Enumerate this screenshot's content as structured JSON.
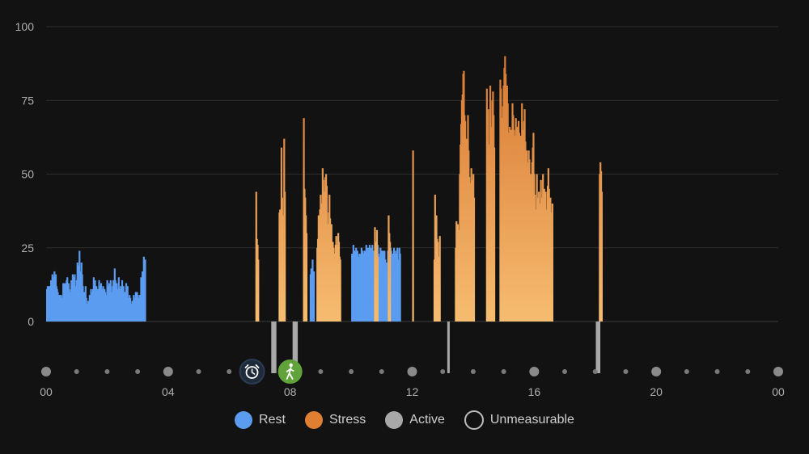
{
  "chart_data": {
    "type": "bar",
    "title": "",
    "xlabel": "",
    "ylabel": "",
    "ylim": [
      0,
      100
    ],
    "xlim_hours": [
      0,
      24
    ],
    "y_ticks": [
      "100",
      "75",
      "50",
      "25",
      "0"
    ],
    "y_tick_values": [
      100,
      75,
      50,
      25,
      0
    ],
    "x_ticks": [
      "00",
      "04",
      "08",
      "12",
      "16",
      "20",
      "00"
    ],
    "x_tick_hours": [
      0,
      4,
      8,
      12,
      16,
      20,
      24
    ],
    "grid": true,
    "legend_placement": "bottom-center",
    "colors": {
      "rest": "#5b9cf0",
      "stress_top": "#e07e32",
      "stress_bottom": "#f4b46a",
      "active": "#a8a8a8",
      "grid": "#2e2e2e",
      "axis_text": "#b0b0b0"
    },
    "series": [
      {
        "name": "Rest",
        "color": "#5b9cf0",
        "segments": [
          {
            "start_hour": 0.0,
            "values": [
              11,
              12,
              10,
              12,
              9,
              12,
              14,
              11,
              16,
              13,
              15,
              17,
              14,
              16,
              12,
              11,
              10,
              8,
              9,
              9,
              8,
              9,
              8,
              6,
              13,
              13,
              11,
              13,
              13,
              14,
              15,
              10,
              13,
              11,
              10,
              9,
              14,
              11,
              16,
              13,
              15,
              16,
              11,
              12,
              14,
              20,
              12,
              19,
              24,
              17,
              15,
              20,
              16,
              12,
              9,
              10,
              9,
              12,
              8,
              6,
              5,
              7,
              5,
              9,
              8,
              11,
              4,
              10,
              11,
              15,
              9,
              14,
              10,
              12,
              9,
              11,
              10,
              14,
              12,
              9,
              13,
              11,
              9,
              12,
              9,
              11,
              10,
              9,
              8,
              14,
              12,
              9,
              13,
              11,
              14,
              9,
              10,
              12,
              14,
              13,
              18,
              14,
              10,
              13,
              11,
              8,
              15,
              9,
              11,
              12,
              10,
              14,
              10,
              12,
              9,
              10,
              8,
              13,
              9,
              12,
              8,
              7,
              9,
              8,
              6,
              6,
              7,
              7,
              9,
              7,
              8,
              10,
              7,
              10,
              9,
              8,
              7,
              9,
              9,
              15,
              14,
              17,
              16,
              22,
              18,
              21
            ]
          },
          {
            "start_hour": 8.64,
            "values": [
              16,
              18,
              14,
              21,
              15,
              17
            ]
          },
          {
            "start_hour": 10.0,
            "values": [
              23,
              22,
              26,
              24,
              24,
              22,
              25,
              23,
              24,
              22,
              20,
              23,
              23,
              21,
              25,
              22,
              24,
              23,
              22,
              24,
              21,
              26,
              24,
              25,
              25,
              24,
              26,
              24,
              25,
              24,
              26,
              24,
              24,
              23,
              25,
              23,
              22,
              24,
              26,
              23,
              22,
              21,
              25,
              23,
              24,
              21,
              24,
              20,
              24,
              21,
              20,
              15,
              20,
              24,
              20,
              21,
              22,
              25,
              24,
              22,
              23,
              22,
              25,
              24,
              23,
              22,
              24,
              25,
              21,
              20,
              25,
              23
            ]
          }
        ]
      },
      {
        "name": "Stress",
        "color": "#e07e32",
        "segments": [
          {
            "start_hour": 6.86,
            "values": [
              44,
              28,
              26,
              21
            ]
          },
          {
            "start_hour": 7.62,
            "values": [
              37,
              38,
              34,
              59,
              42,
              36,
              32,
              62,
              44
            ]
          },
          {
            "start_hour": 8.42,
            "values": [
              69,
              45,
              42,
              36,
              30
            ]
          },
          {
            "start_hour": 8.86,
            "values": [
              25,
              28,
              36,
              31,
              38,
              43,
              40,
              36,
              52,
              48,
              44,
              30,
              49,
              50,
              46,
              30,
              33,
              37,
              43,
              35,
              29,
              33,
              24,
              27,
              25,
              22,
              23,
              26,
              29,
              21,
              26,
              30,
              27,
              22,
              21
            ]
          },
          {
            "start_hour": 10.75,
            "values": [
              32,
              27,
              25,
              31,
              22
            ]
          },
          {
            "start_hour": 11.2,
            "values": [
              36,
              30,
              27
            ]
          },
          {
            "start_hour": 12.0,
            "values": [
              58
            ]
          },
          {
            "start_hour": 12.7,
            "values": [
              21,
              43,
              34,
              36,
              28,
              27,
              22,
              21,
              29
            ]
          },
          {
            "start_hour": 13.4,
            "values": [
              25,
              34,
              33,
              33,
              31,
              31,
              50,
              60,
              67,
              75,
              77,
              84,
              85,
              70,
              68,
              60,
              62,
              53,
              70,
              58,
              49,
              47,
              44,
              52,
              48,
              46,
              50,
              42
            ]
          },
          {
            "start_hour": 14.42,
            "values": [
              79,
              67,
              72,
              55,
              60,
              80,
              64,
              66,
              75,
              78,
              70,
              59
            ]
          },
          {
            "start_hour": 14.86,
            "values": [
              82,
              79,
              62,
              69,
              73,
              80,
              86,
              90,
              84,
              78,
              80,
              74,
              64,
              62,
              66,
              56,
              65,
              61,
              74,
              70,
              65,
              63,
              60,
              69,
              58,
              66,
              57,
              68,
              64,
              60,
              63,
              57,
              74,
              65,
              62,
              68,
              72,
              61,
              56,
              58,
              54,
              52,
              58,
              55,
              47,
              50,
              48,
              54,
              59,
              64,
              50,
              43,
              38,
              35,
              50,
              42,
              37,
              44,
              36,
              40,
              48,
              42,
              38,
              50,
              37,
              45,
              39,
              44,
              35,
              38,
              46,
              52,
              45,
              38,
              42,
              37,
              36,
              40
            ]
          },
          {
            "start_hour": 18.12,
            "values": [
              50,
              54,
              51,
              44
            ]
          }
        ]
      },
      {
        "name": "Active",
        "color": "#a8a8a8",
        "segments": [
          {
            "start_hour": 7.38,
            "values": [
              -7,
              -7,
              -7,
              -7,
              -7,
              -7
            ]
          },
          {
            "start_hour": 8.08,
            "values": [
              -7,
              -7,
              -7,
              -7,
              -7,
              -7
            ]
          },
          {
            "start_hour": 13.15,
            "values": [
              -7,
              -7
            ]
          },
          {
            "start_hour": 18.02,
            "values": [
              -7,
              -7,
              -7,
              -7,
              -7
            ]
          }
        ]
      }
    ],
    "timeline_markers": [
      {
        "name": "Alarm",
        "hour": 6.75,
        "icon": "alarm-clock-icon",
        "color": "#1f2a3a"
      },
      {
        "name": "Walk",
        "hour": 8.0,
        "icon": "walking-person-icon",
        "color": "#5fa33a"
      }
    ]
  },
  "legend": {
    "items": [
      {
        "label": "Rest",
        "color": "#5b9cf0",
        "style": "filled"
      },
      {
        "label": "Stress",
        "color": "#e07e32",
        "style": "filled"
      },
      {
        "label": "Active",
        "color": "#a8a8a8",
        "style": "filled"
      },
      {
        "label": "Unmeasurable",
        "color": "#bdbdbd",
        "style": "outline"
      }
    ]
  }
}
